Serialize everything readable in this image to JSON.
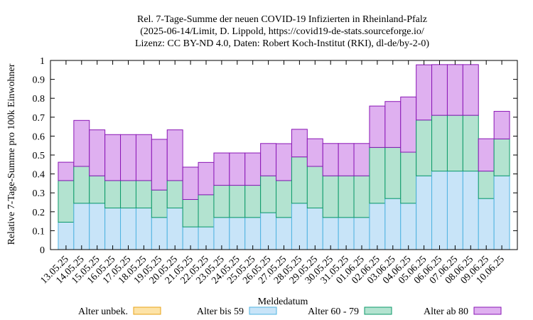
{
  "chart_data": {
    "type": "bar",
    "stacked": true,
    "title_lines": [
      "Rel. 7-Tage-Summe der neuen COVID-19 Infizierten in Rheinland-Pfalz",
      "(2025-06-14/Limit, D. Lippold, https://covid19-de-stats.sourceforge.io/",
      "Lizenz: CC BY-ND 4.0, Daten: Robert Koch-Institut (RKI), dl-de/by-2-0)"
    ],
    "xlabel": "Meldedatum",
    "ylabel": "Relative 7-Tage-Summe pro 100k Einwohner",
    "ylim": [
      0,
      1
    ],
    "yticks": [
      "0",
      "0.1",
      "0.2",
      "0.3",
      "0.4",
      "0.5",
      "0.6",
      "0.7",
      "0.8",
      "0.9",
      "1"
    ],
    "grid": false,
    "legend_position": "bottom",
    "categories": [
      "13.05.25",
      "14.05.25",
      "15.05.25",
      "16.05.25",
      "17.05.25",
      "18.05.25",
      "19.05.25",
      "20.05.25",
      "21.05.25",
      "22.05.25",
      "23.05.25",
      "24.05.25",
      "25.05.25",
      "26.05.25",
      "27.05.25",
      "28.05.25",
      "29.05.25",
      "30.05.25",
      "31.05.25",
      "01.06.25",
      "02.06.25",
      "03.06.25",
      "04.06.25",
      "05.06.25",
      "06.06.25",
      "07.06.25",
      "08.06.25",
      "09.06.25",
      "10.06.25"
    ],
    "series": [
      {
        "name": "Alter unbek.",
        "fill": "#fde3a7",
        "stroke": "#e8a317",
        "values": [
          0,
          0,
          0,
          0,
          0,
          0,
          0,
          0,
          0,
          0,
          0,
          0,
          0,
          0,
          0,
          0,
          0,
          0,
          0,
          0,
          0,
          0,
          0,
          0,
          0,
          0,
          0,
          0,
          0
        ]
      },
      {
        "name": "Alter bis 59",
        "fill": "#c8e4f8",
        "stroke": "#4fb3e0",
        "values": [
          0.145,
          0.245,
          0.245,
          0.22,
          0.22,
          0.22,
          0.17,
          0.22,
          0.12,
          0.12,
          0.17,
          0.17,
          0.17,
          0.195,
          0.17,
          0.245,
          0.22,
          0.17,
          0.17,
          0.17,
          0.245,
          0.27,
          0.245,
          0.39,
          0.415,
          0.415,
          0.415,
          0.27,
          0.39
        ]
      },
      {
        "name": "Alter 60 - 79",
        "fill": "#b3e3d0",
        "stroke": "#0d9a6a",
        "values": [
          0.22,
          0.195,
          0.145,
          0.145,
          0.145,
          0.145,
          0.145,
          0.145,
          0.145,
          0.17,
          0.17,
          0.17,
          0.17,
          0.195,
          0.195,
          0.245,
          0.22,
          0.22,
          0.22,
          0.22,
          0.295,
          0.27,
          0.27,
          0.295,
          0.295,
          0.295,
          0.295,
          0.145,
          0.195
        ]
      },
      {
        "name": "Alter ab 80",
        "fill": "#dfb0f0",
        "stroke": "#8a17b5",
        "values": [
          0.097,
          0.243,
          0.243,
          0.243,
          0.243,
          0.243,
          0.268,
          0.268,
          0.171,
          0.171,
          0.171,
          0.171,
          0.171,
          0.171,
          0.195,
          0.146,
          0.146,
          0.171,
          0.171,
          0.171,
          0.219,
          0.243,
          0.292,
          0.292,
          0.268,
          0.268,
          0.268,
          0.171,
          0.146
        ]
      }
    ]
  }
}
